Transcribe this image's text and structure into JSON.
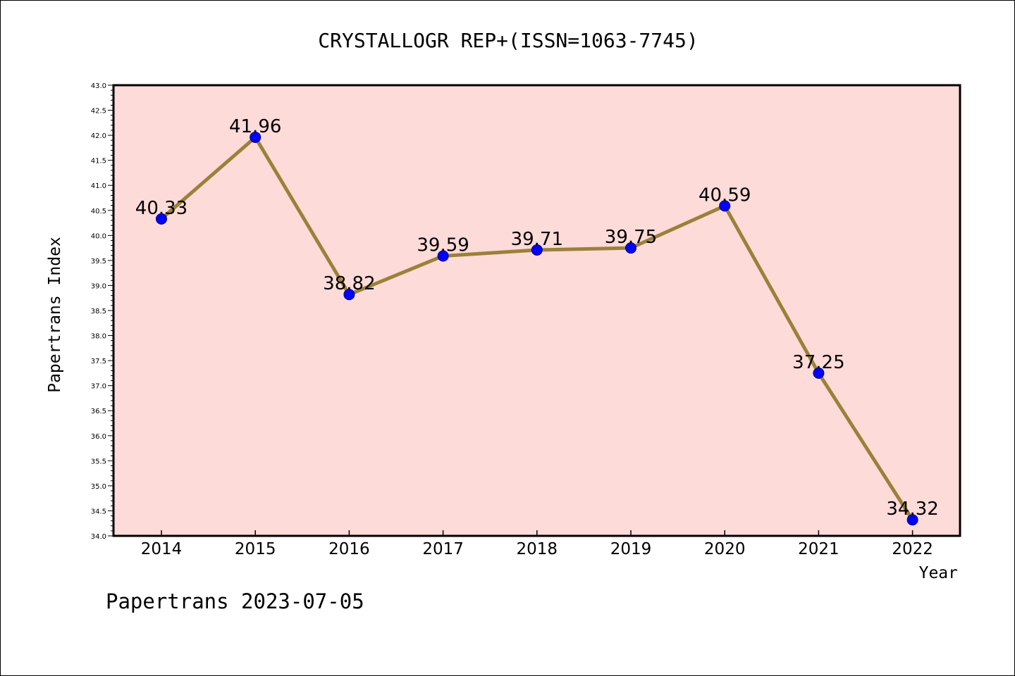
{
  "chart_data": {
    "type": "line",
    "title": "CRYSTALLOGR REP+(ISSN=1063-7745)",
    "xlabel": "Year",
    "ylabel": "Papertrans Index",
    "categories": [
      "2014",
      "2015",
      "2016",
      "2017",
      "2018",
      "2019",
      "2020",
      "2021",
      "2022"
    ],
    "series": [
      {
        "values": [
          40.33,
          41.96,
          38.82,
          39.59,
          39.71,
          39.75,
          40.59,
          37.25,
          34.32
        ],
        "labels": [
          "40.33",
          "41.96",
          "38.82",
          "39.59",
          "39.71",
          "39.75",
          "40.59",
          "37.25",
          "34.32"
        ],
        "line_color": "#9b8139",
        "marker_color": "#0000ff"
      }
    ],
    "ylim": [
      34.0,
      43.0
    ],
    "ytick_step": 0.5,
    "grid": false,
    "background_color": "#fddbd9"
  },
  "footer": "Papertrans 2023-07-05"
}
